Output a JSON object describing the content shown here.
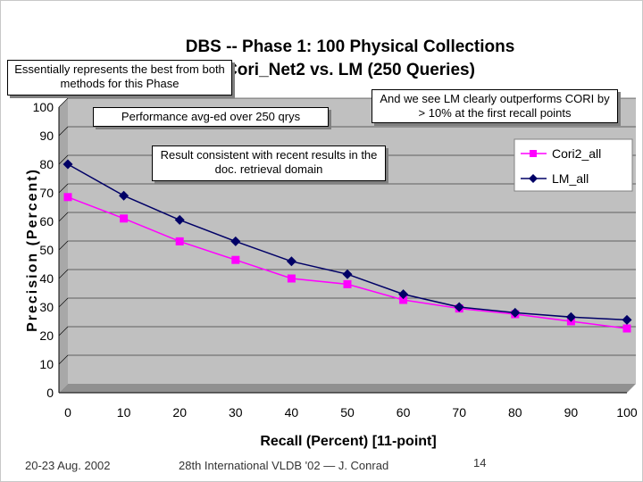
{
  "chart_data": {
    "type": "line",
    "title_line1": "DBS -- Phase 1: 100 Physical Collections",
    "title_line2": "Cori_Net2 vs. LM  (250 Queries)",
    "xlabel": "Recall (Percent) [11-point]",
    "ylabel": "Precision (Percent)",
    "x": [
      0,
      10,
      20,
      30,
      40,
      50,
      60,
      70,
      80,
      90,
      100
    ],
    "xlim": [
      0,
      100
    ],
    "ylim": [
      0,
      100
    ],
    "x_ticks": [
      "0",
      "10",
      "20",
      "30",
      "40",
      "50",
      "60",
      "70",
      "80",
      "90",
      "100"
    ],
    "y_ticks": [
      "0",
      "10",
      "20",
      "30",
      "40",
      "50",
      "60",
      "70",
      "80",
      "90",
      "100"
    ],
    "grid": true,
    "legend_position": "top-right",
    "series": [
      {
        "name": "Cori2_all",
        "color": "#ff00ff",
        "marker": "square",
        "values": [
          68.5,
          61,
          53,
          46.5,
          40,
          38,
          32.5,
          29.5,
          27.5,
          25,
          22.5
        ]
      },
      {
        "name": "LM_all",
        "color": "#000066",
        "marker": "diamond",
        "values": [
          80,
          69,
          60.5,
          53,
          46,
          41.5,
          34.5,
          30,
          28,
          26.5,
          25.5
        ]
      }
    ]
  },
  "callouts": {
    "best_of_both": "Essentially represents the best from both methods for this Phase",
    "avg": "Performance avg-ed over 250 qrys",
    "lm_outperforms": "And we see LM clearly outperforms CORI by > 10%  at the first recall points",
    "consistent": "Result consistent with recent results in the doc. retrieval domain"
  },
  "footer": {
    "date": "20-23 Aug. 2002",
    "conference": "28th International VLDB '02  —  J. Conrad",
    "page": "14"
  },
  "colors": {
    "plot_bg": "#c0c0c0",
    "wall": "#a8a8a8"
  }
}
